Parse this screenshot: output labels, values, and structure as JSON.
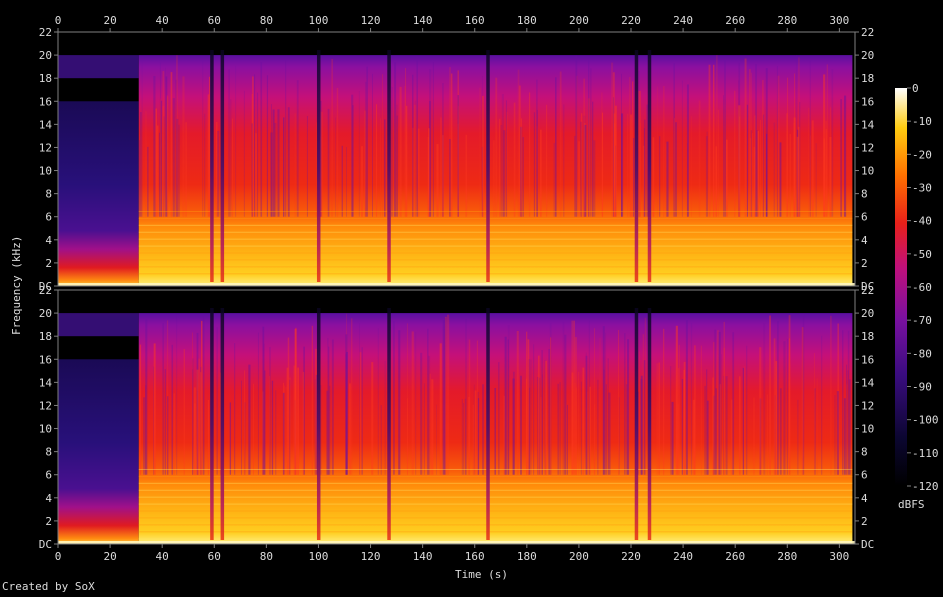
{
  "chart_data": {
    "type": "heatmap",
    "title": "",
    "xlabel": "Time (s)",
    "ylabel": "Frequency (kHz)",
    "xlim": [
      0,
      306
    ],
    "ylim": [
      0,
      22
    ],
    "x_ticks": [
      0,
      20,
      40,
      60,
      80,
      100,
      120,
      140,
      160,
      180,
      200,
      220,
      240,
      260,
      280,
      300
    ],
    "y_ticks": [
      "DC",
      "2",
      "4",
      "6",
      "8",
      "10",
      "12",
      "14",
      "16",
      "18",
      "20",
      "22"
    ],
    "channels": 2,
    "colorbar": {
      "label": "dBFS",
      "ticks": [
        0,
        -10,
        -20,
        -30,
        -40,
        -50,
        -60,
        -70,
        -80,
        -90,
        -100,
        -110,
        -120
      ],
      "range": [
        -120,
        0
      ]
    },
    "segments": [
      {
        "t_start": 0,
        "t_end": 31,
        "cutoff_khz": 16,
        "level_db": -85
      },
      {
        "t_start": 31,
        "t_end": 305,
        "cutoff_khz": 20,
        "level_db": -50
      }
    ],
    "dropouts_s": [
      59,
      63,
      100,
      127,
      165,
      222,
      227
    ],
    "colors": {
      "low": "#000000",
      "navy": "#1a0a55",
      "purple": "#5a10a0",
      "magenta": "#b0108a",
      "red": "#e8141c",
      "orange": "#ff7a00",
      "yellow": "#ffd21a",
      "white": "#ffffff"
    }
  },
  "footer": {
    "credit": "Created by SoX"
  }
}
